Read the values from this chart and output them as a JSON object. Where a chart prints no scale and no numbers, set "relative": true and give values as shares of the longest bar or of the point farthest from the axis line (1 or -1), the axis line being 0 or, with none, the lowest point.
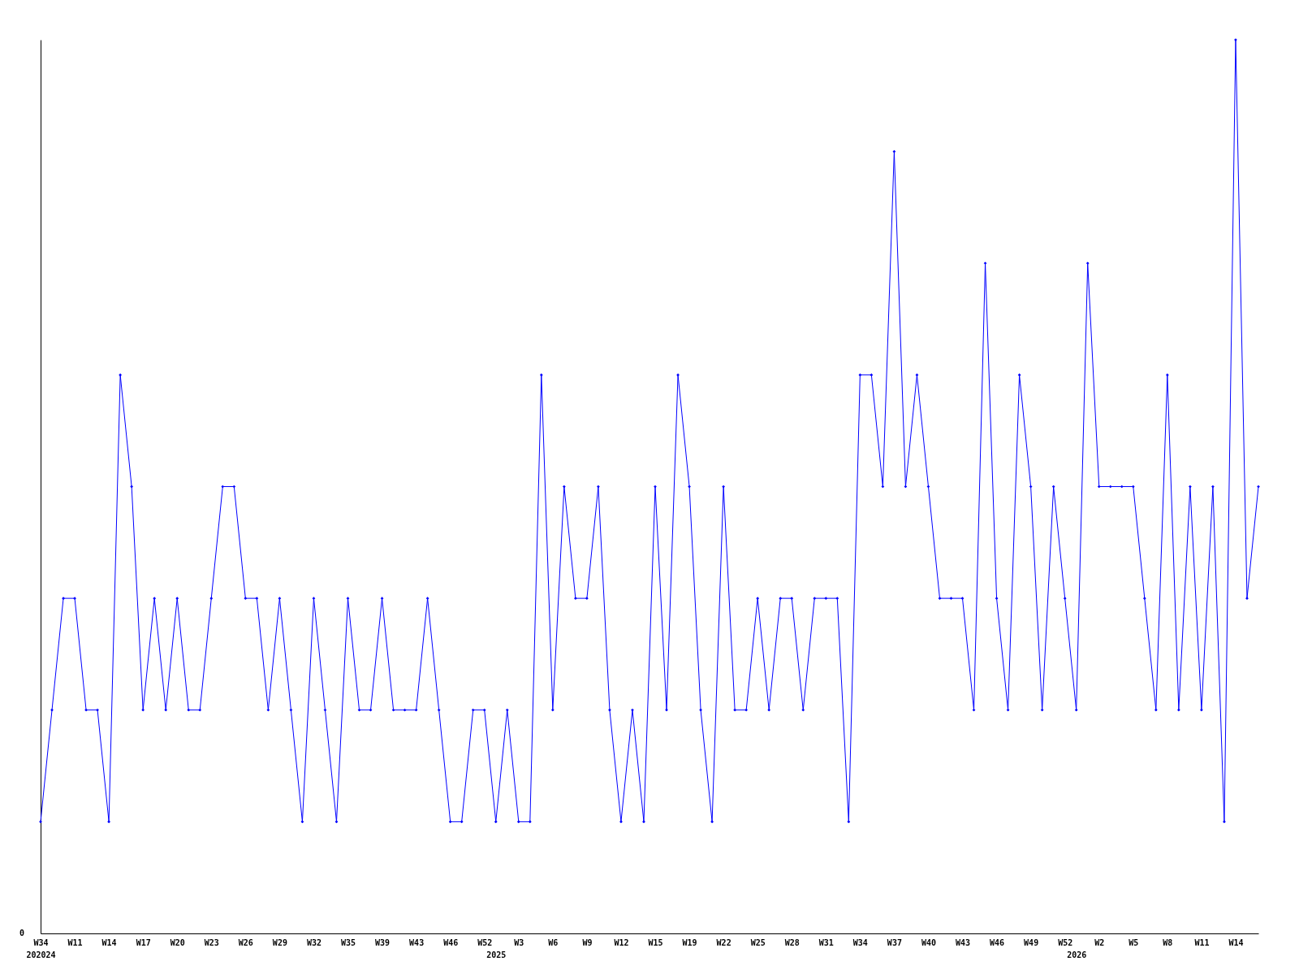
{
  "chart_data": {
    "type": "line",
    "relative": true,
    "marker": "diamond",
    "line_style": "solid",
    "grid": false,
    "annotations": [
      "0"
    ],
    "categories": [
      "W34\n202024",
      null,
      null,
      "W11",
      null,
      null,
      "W14",
      null,
      null,
      "W17",
      null,
      null,
      "W20",
      null,
      null,
      "W23",
      null,
      null,
      "W26",
      null,
      null,
      "W29",
      null,
      null,
      "W32",
      null,
      null,
      "W35",
      null,
      null,
      "W39",
      null,
      null,
      "W43",
      null,
      null,
      "W46",
      null,
      null,
      "W52",
      "\n2025",
      null,
      "W3",
      null,
      null,
      "W6",
      null,
      null,
      "W9",
      null,
      null,
      "W12",
      null,
      null,
      "W15",
      null,
      null,
      "W19",
      null,
      null,
      "W22",
      null,
      null,
      "W25",
      null,
      null,
      "W28",
      null,
      null,
      "W31",
      null,
      null,
      "W34",
      null,
      null,
      "W37",
      null,
      null,
      "W40",
      null,
      null,
      "W43",
      null,
      null,
      "W46",
      null,
      null,
      "W49",
      null,
      null,
      "W52",
      "\n2026",
      null,
      "W2",
      null,
      null,
      "W5",
      null,
      null,
      "W8",
      null,
      null,
      "W11",
      null,
      null,
      "W14",
      null,
      null
    ],
    "series": [
      {
        "color": "#0000ff",
        "values": [
          0.125,
          0.25,
          0.375,
          0.375,
          0.25,
          0.25,
          0.125,
          0.625,
          0.5,
          0.25,
          0.375,
          0.25,
          0.375,
          0.25,
          0.25,
          0.375,
          0.5,
          0.5,
          0.375,
          0.375,
          0.25,
          0.375,
          0.25,
          0.125,
          0.375,
          0.25,
          0.125,
          0.375,
          0.25,
          0.25,
          0.375,
          0.25,
          0.25,
          0.25,
          0.375,
          0.25,
          0.125,
          0.125,
          0.25,
          0.25,
          0.125,
          0.25,
          0.125,
          0.125,
          0.625,
          0.25,
          0.5,
          0.375,
          0.375,
          0.5,
          0.25,
          0.125,
          0.25,
          0.125,
          0.5,
          0.25,
          0.625,
          0.5,
          0.25,
          0.125,
          0.5,
          0.25,
          0.25,
          0.375,
          0.25,
          0.375,
          0.375,
          0.25,
          0.375,
          0.375,
          0.375,
          0.125,
          0.625,
          0.625,
          0.5,
          0.875,
          0.5,
          0.625,
          0.5,
          0.375,
          0.375,
          0.375,
          0.25,
          0.75,
          0.375,
          0.25,
          0.625,
          0.5,
          0.25,
          0.5,
          0.375,
          0.25,
          0.75,
          0.5,
          0.5,
          0.5,
          0.5,
          0.375,
          0.25,
          0.625,
          0.25,
          0.5,
          0.25,
          0.5,
          0.125,
          1,
          0.375,
          0.5
        ]
      }
    ]
  }
}
